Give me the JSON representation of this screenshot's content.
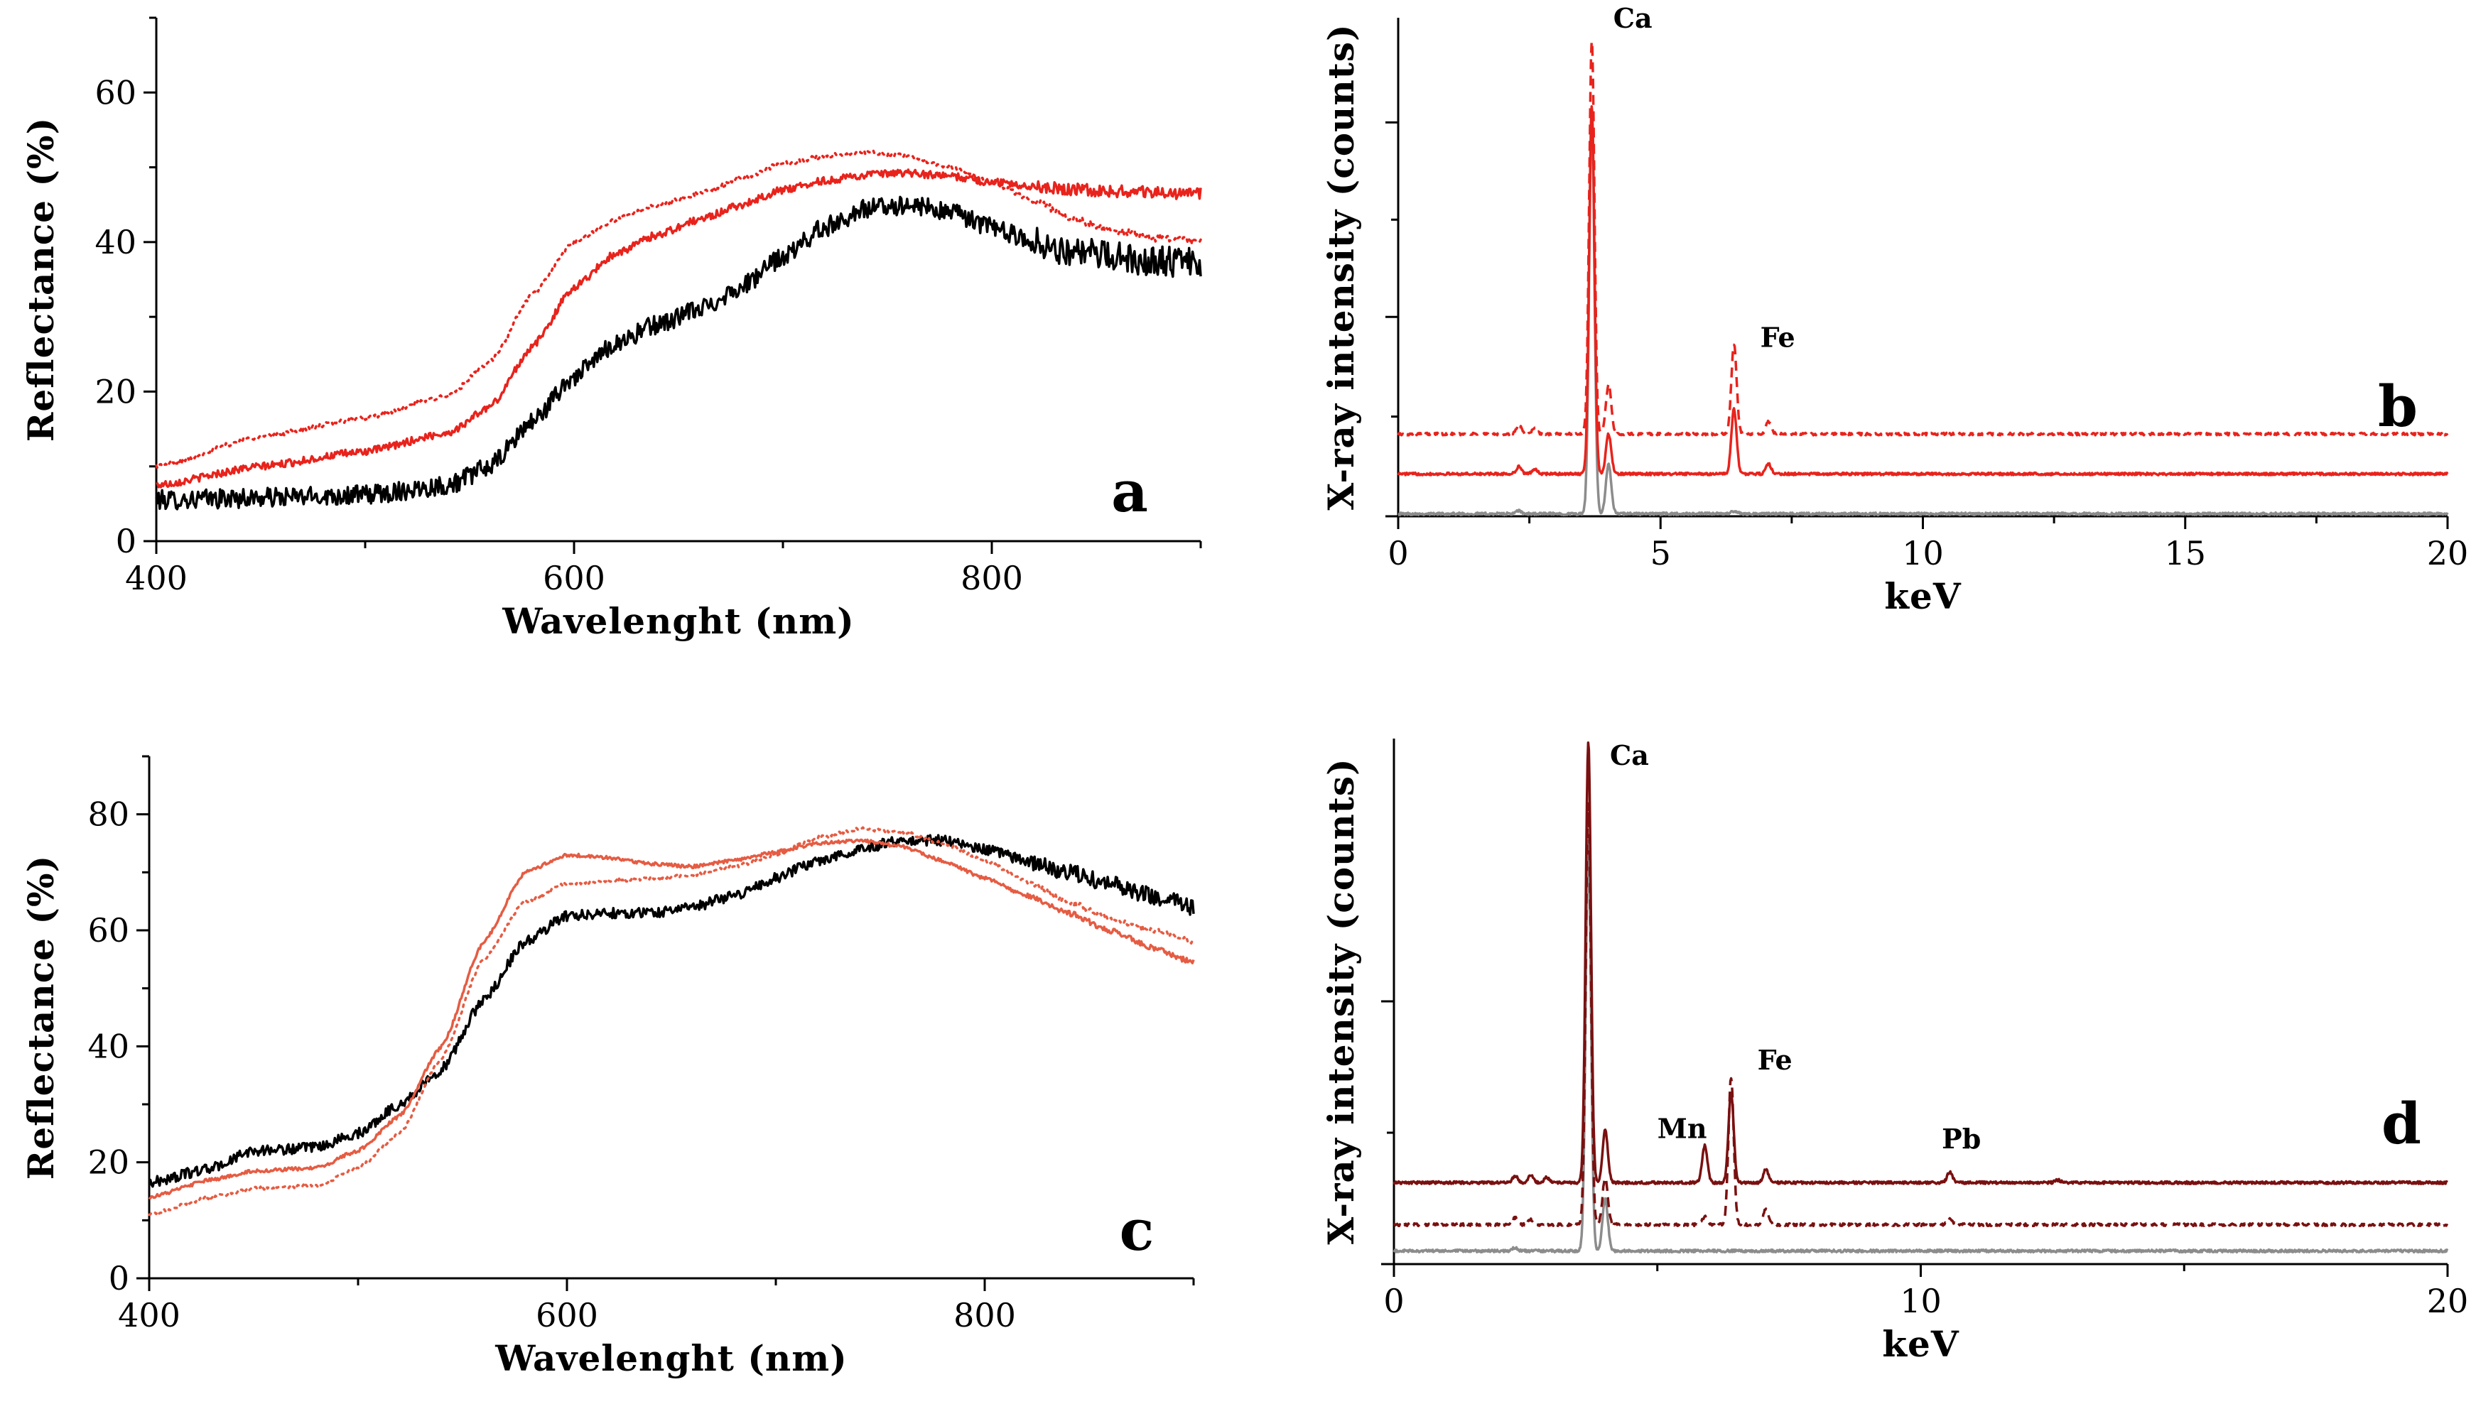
{
  "chart_data": [
    {
      "type": "line",
      "panel_letter": "a",
      "xlabel": "Wavelenght (nm)",
      "ylabel": "Reflectance (%)",
      "xlim": [
        400,
        900
      ],
      "ylim": [
        0,
        70
      ],
      "xticks": [
        400,
        600,
        800
      ],
      "yticks": [
        0,
        20,
        40,
        60
      ],
      "series": [
        {
          "name": "black",
          "color": "#000000",
          "dash": "solid",
          "noise": 1.3,
          "x": [
            400,
            450,
            500,
            540,
            560,
            580,
            600,
            620,
            640,
            660,
            680,
            700,
            720,
            740,
            760,
            780,
            800,
            820,
            840,
            860,
            880,
            900
          ],
          "y": [
            5.5,
            5.8,
            6.2,
            7.5,
            10,
            16,
            22,
            26.5,
            29,
            31,
            34,
            38,
            42,
            44.5,
            45,
            44,
            42,
            40,
            38.5,
            38,
            37.5,
            37
          ]
        },
        {
          "name": "red",
          "color": "#e8231c",
          "dash": "solid",
          "noise": 0.5,
          "x": [
            400,
            450,
            500,
            540,
            560,
            580,
            600,
            620,
            640,
            660,
            680,
            700,
            720,
            740,
            760,
            780,
            800,
            820,
            840,
            860,
            880,
            900
          ],
          "y": [
            7.5,
            10,
            12,
            14.5,
            18,
            26,
            34,
            38.5,
            41,
            43,
            45,
            47,
            48.2,
            49,
            49.2,
            48.8,
            48,
            47.5,
            47,
            46.8,
            46.6,
            46.5
          ]
        },
        {
          "name": "red dotted",
          "color": "#e8231c",
          "dash": "dotted",
          "noise": 0.3,
          "x": [
            400,
            450,
            500,
            540,
            560,
            580,
            600,
            620,
            640,
            660,
            680,
            700,
            720,
            740,
            760,
            780,
            800,
            820,
            840,
            860,
            880,
            900
          ],
          "y": [
            10,
            14,
            16.5,
            19.5,
            24,
            33,
            40,
            43,
            45,
            46.5,
            48.5,
            50.5,
            51.5,
            52,
            51.5,
            50,
            48,
            45.5,
            43,
            41.5,
            40.5,
            40
          ]
        }
      ]
    },
    {
      "type": "line",
      "panel_letter": "b",
      "xlabel": "keV",
      "ylabel": "X-ray intensity (counts)",
      "xlim": [
        0,
        20
      ],
      "ylim": [
        0,
        100
      ],
      "xticks": [
        0,
        5,
        10,
        15,
        20
      ],
      "show_ytick_labels": false,
      "series": [
        {
          "name": "grey",
          "color": "#8c8c8c",
          "dash": "solid",
          "baseline": 0.5,
          "peaks": [
            [
              3.69,
              80,
              0.05
            ],
            [
              4.01,
              10,
              0.05
            ],
            [
              2.3,
              0.6,
              0.05
            ],
            [
              6.4,
              0.5,
              0.06
            ]
          ]
        },
        {
          "name": "red solid",
          "color": "#e8231c",
          "dash": "solid",
          "baseline": 8.5,
          "peaks": [
            [
              3.69,
              74,
              0.05
            ],
            [
              4.01,
              8,
              0.05
            ],
            [
              6.4,
              13,
              0.05
            ],
            [
              7.06,
              2,
              0.05
            ],
            [
              2.3,
              1.5,
              0.05
            ],
            [
              2.6,
              1,
              0.05
            ]
          ]
        },
        {
          "name": "red dashed",
          "color": "#e8231c",
          "dash": "dashed",
          "baseline": 16.5,
          "peaks": [
            [
              3.69,
              79,
              0.05
            ],
            [
              4.01,
              10,
              0.05
            ],
            [
              6.4,
              18,
              0.05
            ],
            [
              7.06,
              2.5,
              0.05
            ],
            [
              2.3,
              1.8,
              0.05
            ],
            [
              2.6,
              1.2,
              0.05
            ]
          ]
        }
      ],
      "annotations": [
        {
          "text": "Ca",
          "x": 4.1,
          "y": 98
        },
        {
          "text": "Fe",
          "x": 6.9,
          "y": 34
        }
      ]
    },
    {
      "type": "line",
      "panel_letter": "c",
      "xlabel": "Wavelenght (nm)",
      "ylabel": "Reflectance (%)",
      "xlim": [
        400,
        900
      ],
      "ylim": [
        0,
        90
      ],
      "xticks": [
        400,
        600,
        800
      ],
      "yticks": [
        0,
        20,
        40,
        60,
        80
      ],
      "series": [
        {
          "name": "black",
          "color": "#000000",
          "dash": "solid",
          "noise": 0.9,
          "x": [
            400,
            430,
            450,
            480,
            500,
            520,
            540,
            560,
            580,
            600,
            620,
            640,
            660,
            680,
            700,
            720,
            740,
            760,
            780,
            800,
            820,
            840,
            860,
            880,
            900
          ],
          "y": [
            16.5,
            19,
            22,
            22.5,
            25,
            30,
            36,
            48,
            58,
            62.5,
            63,
            63,
            64,
            66,
            69,
            72,
            74,
            75.5,
            75.5,
            74,
            72,
            70,
            68,
            66,
            64
          ]
        },
        {
          "name": "salmon",
          "color": "#e55c43",
          "dash": "solid",
          "noise": 0.3,
          "x": [
            400,
            430,
            450,
            480,
            500,
            520,
            540,
            560,
            580,
            600,
            620,
            640,
            660,
            680,
            700,
            720,
            740,
            760,
            780,
            800,
            820,
            840,
            860,
            880,
            900
          ],
          "y": [
            14,
            17,
            18.5,
            19,
            22,
            28,
            40,
            58,
            70,
            73,
            72.5,
            71.5,
            71,
            72,
            73.5,
            75,
            75.5,
            74.5,
            72,
            69,
            66,
            63,
            60,
            57,
            54.5
          ]
        },
        {
          "name": "salmon dotted",
          "color": "#e55c43",
          "dash": "dotted",
          "noise": 0.3,
          "x": [
            400,
            430,
            450,
            480,
            500,
            520,
            540,
            560,
            580,
            600,
            620,
            640,
            660,
            680,
            700,
            720,
            740,
            760,
            780,
            800,
            820,
            840,
            860,
            880,
            900
          ],
          "y": [
            11,
            14,
            15.5,
            16,
            19,
            25,
            38,
            55,
            65,
            68,
            68.5,
            69,
            69.5,
            71,
            73,
            76,
            77.5,
            77,
            75,
            72,
            68.5,
            65,
            62,
            60,
            58
          ]
        }
      ]
    },
    {
      "type": "line",
      "panel_letter": "d",
      "xlabel": "keV",
      "ylabel": "X-ray intensity (counts)",
      "xlim": [
        0,
        20
      ],
      "ylim": [
        0,
        100
      ],
      "xticks": [
        0,
        10,
        20
      ],
      "show_ytick_labels": false,
      "series": [
        {
          "name": "grey",
          "color": "#8c8c8c",
          "dash": "solid",
          "baseline": 2.5,
          "peaks": [
            [
              3.69,
              78,
              0.05
            ],
            [
              4.01,
              10,
              0.05
            ],
            [
              2.3,
              0.6,
              0.05
            ]
          ]
        },
        {
          "name": "dark red dashed",
          "color": "#7a1010",
          "dash": "dashed",
          "baseline": 7.5,
          "peaks": [
            [
              3.69,
              80,
              0.05
            ],
            [
              4.01,
              9,
              0.05
            ],
            [
              5.9,
              1.5,
              0.05
            ],
            [
              6.4,
              28,
              0.05
            ],
            [
              7.06,
              3,
              0.05
            ],
            [
              2.3,
              1.3,
              0.05
            ],
            [
              2.6,
              1,
              0.05
            ],
            [
              10.55,
              1,
              0.05
            ]
          ]
        },
        {
          "name": "dark red solid",
          "color": "#7a1010",
          "dash": "solid",
          "baseline": 15.5,
          "peaks": [
            [
              3.69,
              84,
              0.05
            ],
            [
              4.01,
              10,
              0.05
            ],
            [
              5.9,
              7,
              0.05
            ],
            [
              6.4,
              17,
              0.05
            ],
            [
              7.06,
              2.5,
              0.05
            ],
            [
              2.3,
              1.3,
              0.05
            ],
            [
              2.6,
              1.5,
              0.05
            ],
            [
              2.9,
              1,
              0.05
            ],
            [
              10.55,
              2,
              0.05
            ],
            [
              12.6,
              0.5,
              0.05
            ]
          ]
        }
      ],
      "annotations": [
        {
          "text": "Ca",
          "x": 4.1,
          "y": 95
        },
        {
          "text": "Mn",
          "x": 5.0,
          "y": 24
        },
        {
          "text": "Fe",
          "x": 6.9,
          "y": 37
        },
        {
          "text": "Pb",
          "x": 10.4,
          "y": 22
        }
      ]
    }
  ]
}
